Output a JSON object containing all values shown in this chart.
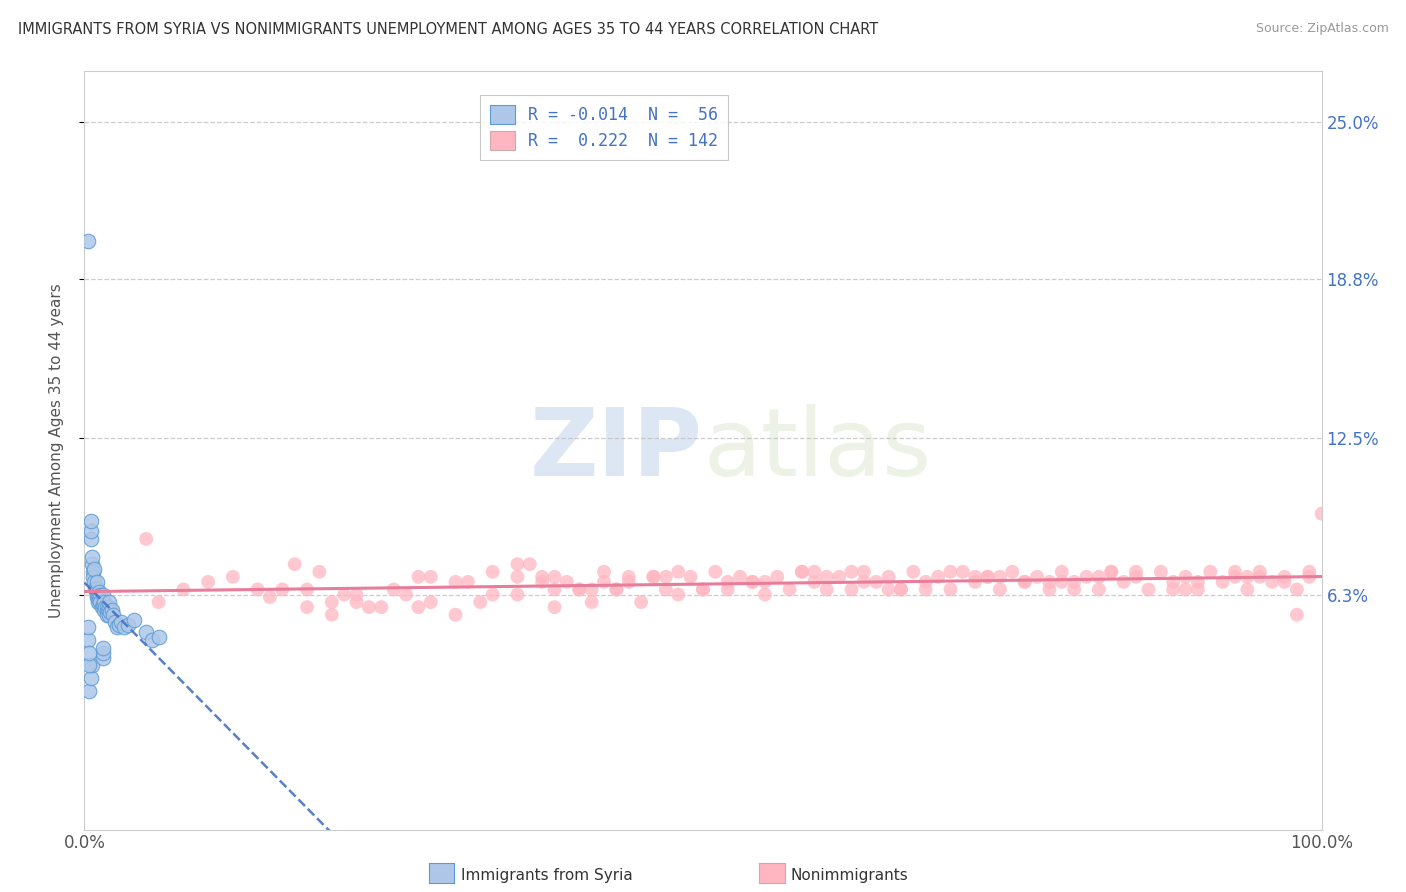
{
  "title": "IMMIGRANTS FROM SYRIA VS NONIMMIGRANTS UNEMPLOYMENT AMONG AGES 35 TO 44 YEARS CORRELATION CHART",
  "source": "Source: ZipAtlas.com",
  "ylabel": "Unemployment Among Ages 35 to 44 years",
  "xlim": [
    0.0,
    100.0
  ],
  "ylim": [
    -3.0,
    27.0
  ],
  "yticks": [
    6.3,
    12.5,
    18.8,
    25.0
  ],
  "ytick_labels": [
    "6.3%",
    "12.5%",
    "18.8%",
    "25.0%"
  ],
  "xticks": [
    0.0,
    100.0
  ],
  "xtick_labels": [
    "0.0%",
    "100.0%"
  ],
  "series1_color": "#aec7e8",
  "series1_edge": "#5b9bd5",
  "series2_color": "#ffb6c1",
  "series2_edge": "none",
  "series1_R": -0.014,
  "series1_N": 56,
  "series2_R": 0.222,
  "series2_N": 142,
  "tick_color": "#4472c4",
  "trend1_color": "#4472c4",
  "trend2_color": "#e87c9b",
  "background_color": "#ffffff",
  "grid_color": "#c0c0c0",
  "watermark_text": "ZIPatlas",
  "watermark_color": "#d8e8f0",
  "legend_label1": "R = -0.014  N =  56",
  "legend_label2": "R =  0.222  N = 142",
  "bottom_label1": "Immigrants from Syria",
  "bottom_label2": "Nonimmigrants",
  "series1_x_raw": [
    0.3,
    0.5,
    0.5,
    0.5,
    0.6,
    0.6,
    0.7,
    0.7,
    0.8,
    0.8,
    0.9,
    1.0,
    1.0,
    1.0,
    1.0,
    1.1,
    1.1,
    1.2,
    1.2,
    1.3,
    1.3,
    1.4,
    1.5,
    1.5,
    1.6,
    1.6,
    1.7,
    1.8,
    1.8,
    1.9,
    2.0,
    2.0,
    2.0,
    2.1,
    2.2,
    2.3,
    2.5,
    2.6,
    2.8,
    3.0,
    3.2,
    3.5,
    4.0,
    5.0,
    5.5,
    6.0,
    0.4,
    0.5,
    0.6,
    1.5,
    1.5,
    1.5,
    0.3,
    0.3,
    0.4,
    0.4
  ],
  "series1_y_raw": [
    20.3,
    8.5,
    8.8,
    9.2,
    7.5,
    7.8,
    7.2,
    7.0,
    6.8,
    7.3,
    6.5,
    6.3,
    6.5,
    6.2,
    6.8,
    6.3,
    6.0,
    6.4,
    6.1,
    6.3,
    6.0,
    5.8,
    6.3,
    5.9,
    6.0,
    5.7,
    5.8,
    5.8,
    5.5,
    5.7,
    5.5,
    5.8,
    6.0,
    5.6,
    5.7,
    5.5,
    5.2,
    5.0,
    5.1,
    5.2,
    5.0,
    5.1,
    5.3,
    4.8,
    4.5,
    4.6,
    2.5,
    3.0,
    3.5,
    3.8,
    4.0,
    4.2,
    4.5,
    5.0,
    3.5,
    4.0
  ],
  "series2_x_raw": [
    5.0,
    8.0,
    10.0,
    12.0,
    15.0,
    17.0,
    18.0,
    20.0,
    22.0,
    23.0,
    25.0,
    27.0,
    28.0,
    30.0,
    30.0,
    32.0,
    33.0,
    35.0,
    35.0,
    37.0,
    38.0,
    38.0,
    40.0,
    41.0,
    42.0,
    43.0,
    44.0,
    45.0,
    46.0,
    47.0,
    48.0,
    49.0,
    50.0,
    51.0,
    52.0,
    53.0,
    54.0,
    55.0,
    56.0,
    57.0,
    58.0,
    59.0,
    60.0,
    61.0,
    62.0,
    63.0,
    64.0,
    65.0,
    66.0,
    67.0,
    68.0,
    69.0,
    70.0,
    71.0,
    72.0,
    73.0,
    74.0,
    75.0,
    76.0,
    77.0,
    78.0,
    79.0,
    80.0,
    81.0,
    82.0,
    83.0,
    84.0,
    85.0,
    86.0,
    87.0,
    88.0,
    89.0,
    90.0,
    91.0,
    92.0,
    93.0,
    94.0,
    95.0,
    96.0,
    97.0,
    98.0,
    99.0,
    100.0,
    27.0,
    33.0,
    35.0,
    38.0,
    42.0,
    20.0,
    22.0,
    24.0,
    26.0,
    28.0,
    36.0,
    39.0,
    43.0,
    46.0,
    50.0,
    58.0,
    63.0,
    72.0,
    80.0,
    85.0,
    90.0,
    95.0,
    16.0,
    19.0,
    31.0,
    37.0,
    41.0,
    48.0,
    54.0,
    60.0,
    65.0,
    70.0,
    76.0,
    82.0,
    88.0,
    93.0,
    97.0,
    99.0,
    18.0,
    21.0,
    40.0,
    47.0,
    55.0,
    62.0,
    68.0,
    74.0,
    79.0,
    83.0,
    89.0,
    94.0,
    98.0,
    6.0,
    14.0,
    44.0,
    52.0,
    59.0,
    66.0,
    73.0,
    78.0
  ],
  "series2_y_raw": [
    8.5,
    6.5,
    6.8,
    7.0,
    6.2,
    7.5,
    6.5,
    6.0,
    6.3,
    5.8,
    6.5,
    7.0,
    6.0,
    5.5,
    6.8,
    6.0,
    7.2,
    6.3,
    7.5,
    6.8,
    5.8,
    7.0,
    6.5,
    6.0,
    7.2,
    6.5,
    6.8,
    6.0,
    7.0,
    6.5,
    6.3,
    7.0,
    6.5,
    7.2,
    6.5,
    7.0,
    6.8,
    6.3,
    7.0,
    6.5,
    7.2,
    6.8,
    6.5,
    7.0,
    6.5,
    7.2,
    6.8,
    7.0,
    6.5,
    7.2,
    6.8,
    7.0,
    6.5,
    7.2,
    6.8,
    7.0,
    6.5,
    7.2,
    6.8,
    7.0,
    6.5,
    7.2,
    6.8,
    7.0,
    6.5,
    7.2,
    6.8,
    7.0,
    6.5,
    7.2,
    6.8,
    7.0,
    6.5,
    7.2,
    6.8,
    7.0,
    6.5,
    7.2,
    6.8,
    7.0,
    6.5,
    7.2,
    9.5,
    5.8,
    6.3,
    7.0,
    6.5,
    6.8,
    5.5,
    6.0,
    5.8,
    6.3,
    7.0,
    7.5,
    6.8,
    6.5,
    7.0,
    6.5,
    7.2,
    6.8,
    7.0,
    6.5,
    7.2,
    6.8,
    7.0,
    6.5,
    7.2,
    6.8,
    7.0,
    6.5,
    7.2,
    6.8,
    7.0,
    6.5,
    7.2,
    6.8,
    7.0,
    6.5,
    7.2,
    6.8,
    7.0,
    5.8,
    6.3,
    6.5,
    7.0,
    6.8,
    7.2,
    6.5,
    7.0,
    6.8,
    7.2,
    6.5,
    7.0,
    5.5,
    6.0,
    6.5,
    7.0,
    6.8,
    7.2,
    6.5,
    7.0,
    6.8
  ]
}
